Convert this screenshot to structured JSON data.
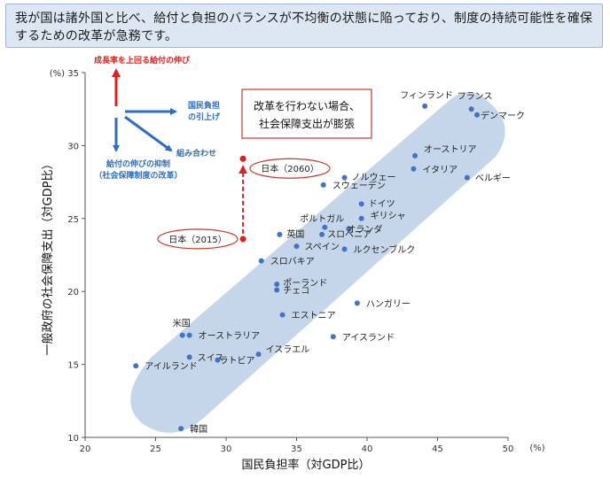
{
  "header": {
    "text": "我が国は諸外国と比べ、給付と負担のバランスが不均衡の状態に陥っており、制度の持続可能性を確保するための改革が急務です。"
  },
  "chart_data": {
    "type": "scatter",
    "xlabel": "国民負担率（対GDP比）",
    "ylabel": "一般政府の社会保障支出（対GDP比）",
    "x_unit": "(%)",
    "y_unit": "(%)",
    "xlim": [
      20,
      50
    ],
    "ylim": [
      10,
      35
    ],
    "xticks": [
      "20",
      "25",
      "30",
      "35",
      "40",
      "45",
      "50"
    ],
    "yticks": [
      "10",
      "15",
      "20",
      "25",
      "30",
      "35"
    ],
    "grid": false,
    "points": [
      {
        "label": "フィンランド",
        "x": 44.1,
        "y": 32.7
      },
      {
        "label": "フランス",
        "x": 47.4,
        "y": 32.5
      },
      {
        "label": "デンマーク",
        "x": 47.8,
        "y": 32.1
      },
      {
        "label": "オーストリア",
        "x": 43.4,
        "y": 29.3
      },
      {
        "label": "イタリア",
        "x": 43.3,
        "y": 28.4
      },
      {
        "label": "ベルギー",
        "x": 47.1,
        "y": 27.8
      },
      {
        "label": "ノルウェー",
        "x": 38.4,
        "y": 27.8
      },
      {
        "label": "スウェーデン",
        "x": 36.9,
        "y": 27.3
      },
      {
        "label": "ドイツ",
        "x": 39.6,
        "y": 26.0
      },
      {
        "label": "ポルトガル",
        "x": 37.0,
        "y": 24.4
      },
      {
        "label": "ギリシャ",
        "x": 39.6,
        "y": 25.0
      },
      {
        "label": "オランダ",
        "x": 38.7,
        "y": 24.3
      },
      {
        "label": "英国",
        "x": 33.8,
        "y": 23.9
      },
      {
        "label": "スロベニア",
        "x": 36.8,
        "y": 23.9
      },
      {
        "label": "スペイン",
        "x": 35.0,
        "y": 23.1
      },
      {
        "label": "ルクセンブルク",
        "x": 38.4,
        "y": 22.9
      },
      {
        "label": "スロバキア",
        "x": 32.5,
        "y": 22.1
      },
      {
        "label": "ポーランド",
        "x": 33.6,
        "y": 20.5
      },
      {
        "label": "チェコ",
        "x": 33.6,
        "y": 20.1
      },
      {
        "label": "ハンガリー",
        "x": 39.3,
        "y": 19.2
      },
      {
        "label": "エストニア",
        "x": 34.0,
        "y": 18.4
      },
      {
        "label": "米国",
        "x": 26.9,
        "y": 17.0
      },
      {
        "label": "オーストラリア",
        "x": 27.4,
        "y": 17.0
      },
      {
        "label": "アイスランド",
        "x": 37.6,
        "y": 16.9
      },
      {
        "label": "イスラエル",
        "x": 32.3,
        "y": 15.7
      },
      {
        "label": "スイス",
        "x": 27.4,
        "y": 15.5
      },
      {
        "label": "ラトビア",
        "x": 29.4,
        "y": 15.3
      },
      {
        "label": "アイルランド",
        "x": 23.6,
        "y": 14.9
      },
      {
        "label": "韓国",
        "x": 26.8,
        "y": 10.6
      }
    ],
    "japan": [
      {
        "label": "日本（2015）",
        "x": 31.2,
        "y": 23.6
      },
      {
        "label": "日本（2060）",
        "x": 31.2,
        "y": 29.1
      }
    ],
    "annotations": {
      "callout": "改革を行わない場合、社会保障支出が膨張",
      "up_arrow_label": "成長率を上回る給付の伸び",
      "right_arrow_label": "国民負担の引上げ",
      "diag_arrow_label": "組み合わせ",
      "down_arrow_label_1": "給付の伸びの抑制",
      "down_arrow_label_2": "（社会保障制度の改革）"
    },
    "colors": {
      "point": "#4472c4",
      "band": "#c5d5ea",
      "arrow_blue": "#2e6dbf",
      "arrow_red": "#e02020",
      "japan_ring": "#c0392b"
    }
  }
}
